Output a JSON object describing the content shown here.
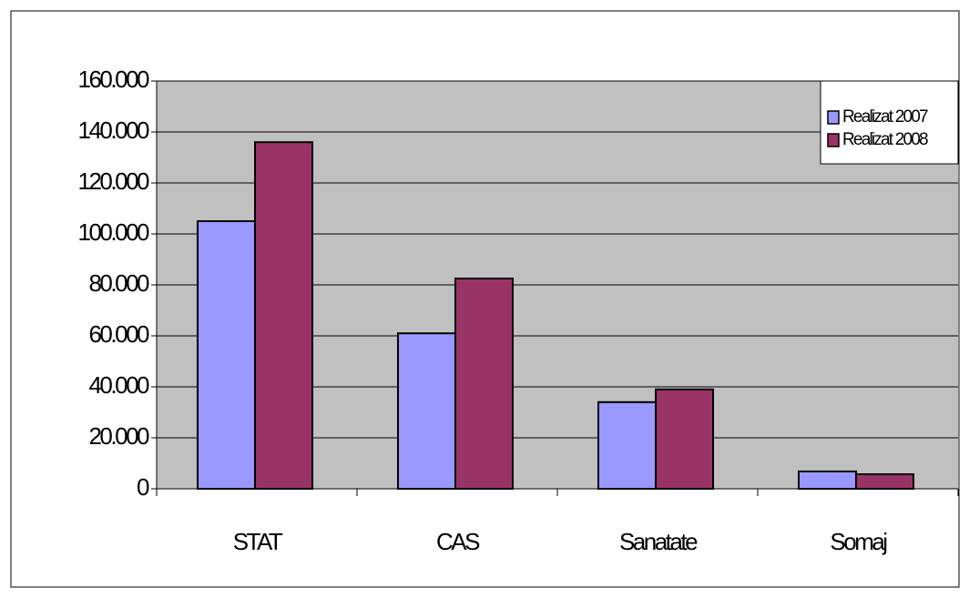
{
  "chart_data": {
    "type": "bar",
    "categories": [
      "STAT",
      "CAS",
      "Sanatate",
      "Somaj"
    ],
    "series": [
      {
        "name": "Realizat 2007",
        "color": "#9999ff",
        "values": [
          105000,
          61000,
          34000,
          6800
        ]
      },
      {
        "name": "Realizat 2008",
        "color": "#993366",
        "values": [
          136000,
          82500,
          39000,
          5700
        ]
      }
    ],
    "ylim": [
      0,
      160000
    ],
    "yticks": [
      0,
      {
        "value": 20000,
        "label": "20.000"
      },
      {
        "value": 40000,
        "label": "40.000"
      },
      {
        "value": 60000,
        "label": "60.000"
      },
      {
        "value": 80000,
        "label": "80.000"
      },
      {
        "value": 100000,
        "label": "100.000"
      },
      {
        "value": 120000,
        "label": "120.000"
      },
      {
        "value": 140000,
        "label": "140.000"
      },
      {
        "value": 160000,
        "label": "160.000"
      }
    ],
    "grid": true,
    "legend": "top-right"
  }
}
